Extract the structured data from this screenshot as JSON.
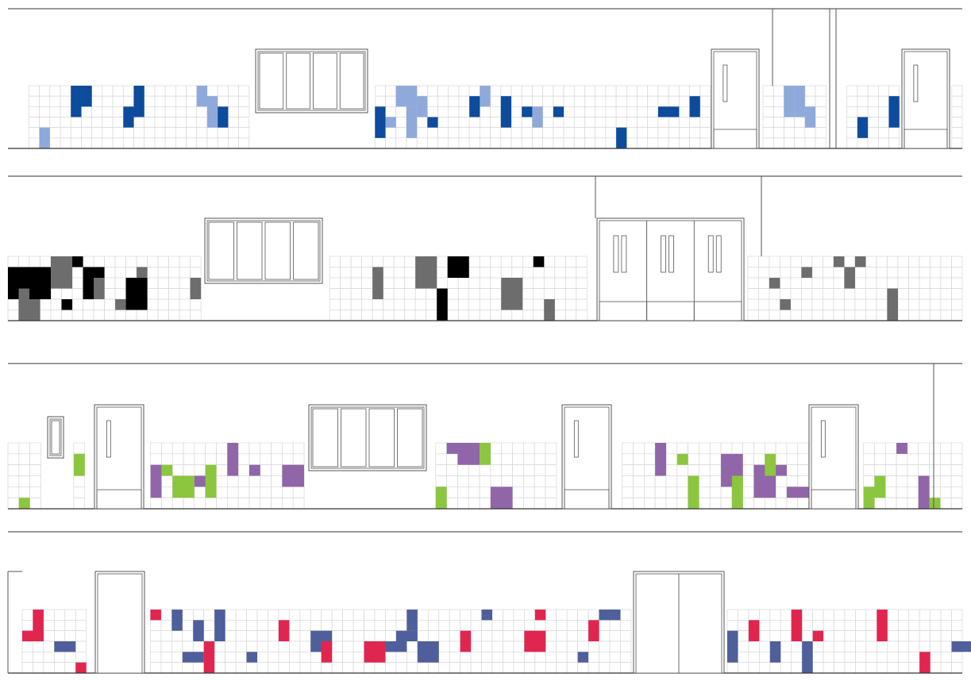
{
  "colors": {
    "background": "#ffffff",
    "grid": "#d7d7d7",
    "line": "#333333",
    "outline": "#555555"
  },
  "elevations": [
    {
      "name": "blue-tile-elevation",
      "palette": [
        "#0d4b9c",
        "#8fa9da"
      ]
    },
    {
      "name": "grey-tile-elevation",
      "palette": [
        "#000000",
        "#6d6d6d"
      ]
    },
    {
      "name": "purple-green-tile-elevation",
      "palette": [
        "#9066a9",
        "#8cc63f"
      ]
    },
    {
      "name": "navy-red-tile-elevation",
      "palette": [
        "#4e5f9b",
        "#e0264f"
      ]
    }
  ]
}
